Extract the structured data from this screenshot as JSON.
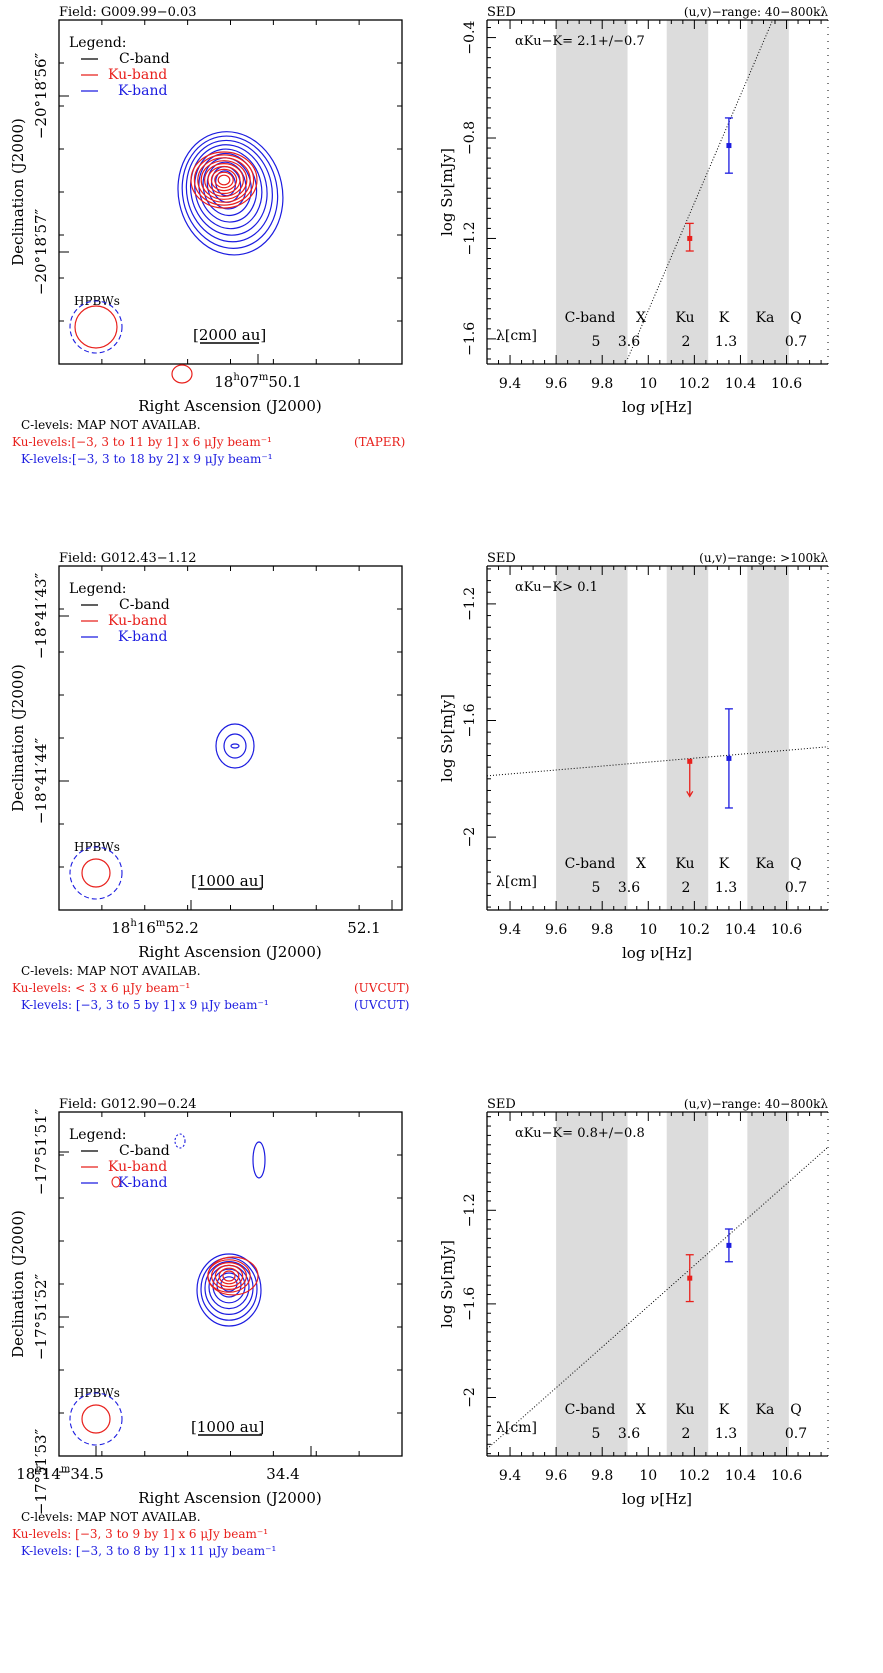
{
  "panels": [
    {
      "field_title": "Field: G009.99−0.03",
      "legend": {
        "title": "Legend:",
        "c": "C-band",
        "ku": "Ku-band",
        "k": "K-band"
      },
      "hpbws_label": "HPBWs",
      "scalebar_label": "[2000 au]",
      "ra_axis_label": "Right Ascension (J2000)",
      "dec_axis_label": "Declination (J2000)",
      "ra_ticks": [
        {
          "label": "18h07m50.1s",
          "base": "18",
          "h": "h",
          "mid": "07",
          "m": "m",
          "tail": "50.1"
        }
      ],
      "dec_ticks": [
        "−20°18′56″",
        "−20°18′57″"
      ],
      "levels": {
        "c": "C-levels:   MAP NOT AVAILAB.",
        "ku": "Ku-levels:[−3, 3 to 11 by 1] x  6 μJy beam⁻¹",
        "ku_note": "(TAPER)",
        "k": "K-levels:[−3, 3 to 18 by 2] x  9 μJy beam⁻¹",
        "k_note": ""
      },
      "sed": {
        "title": "SED",
        "uv_range": "(u,v)−range:  40−800kλ",
        "alpha": "αKu−K=  2.1+/−0.7",
        "bands": [
          "C-band",
          "X",
          "Ku",
          "K",
          "Ka",
          "Q"
        ],
        "wavelengths": [
          "5",
          "3.6",
          "2",
          "1.3",
          "0.7"
        ],
        "lambda_label": "λ[cm]",
        "xlabel": "log ν[Hz]",
        "ylabel": "log Sν[mJy]"
      }
    },
    {
      "field_title": "Field: G012.43−1.12",
      "legend": {
        "title": "Legend:",
        "c": "C-band",
        "ku": "Ku-band",
        "k": "K-band"
      },
      "hpbws_label": "HPBWs",
      "scalebar_label": "[1000 au]",
      "ra_axis_label": "Right Ascension (J2000)",
      "dec_axis_label": "Declination (J2000)",
      "ra_ticks": [
        {
          "label": "18h16m52.2s"
        },
        {
          "label": "52.1s"
        }
      ],
      "dec_ticks": [
        "−18°41′43″",
        "−18°41′44″"
      ],
      "levels": {
        "c": "C-levels:   MAP NOT AVAILAB.",
        "ku": "Ku-levels:    < 3 x 6 μJy beam⁻¹",
        "ku_note": "(UVCUT)",
        "k": "K-levels: [−3, 3 to 5 by 1]  x  9 μJy beam⁻¹",
        "k_note": "(UVCUT)"
      },
      "sed": {
        "title": "SED",
        "uv_range": "(u,v)−range:  >100kλ",
        "alpha": "αKu−K> 0.1",
        "bands": [
          "C-band",
          "X",
          "Ku",
          "K",
          "Ka",
          "Q"
        ],
        "wavelengths": [
          "5",
          "3.6",
          "2",
          "1.3",
          "0.7"
        ],
        "lambda_label": "λ[cm]",
        "xlabel": "log ν[Hz]",
        "ylabel": "log Sν[mJy]"
      }
    },
    {
      "field_title": "Field: G012.90−0.24",
      "legend": {
        "title": "Legend:",
        "c": "C-band",
        "ku": "Ku-band",
        "k": "K-band"
      },
      "hpbws_label": "HPBWs",
      "scalebar_label": "[1000 au]",
      "ra_axis_label": "Right Ascension (J2000)",
      "dec_axis_label": "Declination (J2000)",
      "ra_ticks": [
        {
          "label": "18h14m34.5s"
        },
        {
          "label": "34.4s"
        }
      ],
      "dec_ticks": [
        "−17°51′51″",
        "−17°51′52″",
        "−17°51′53″"
      ],
      "levels": {
        "c": "C-levels:   MAP NOT AVAILAB.",
        "ku": "Ku-levels: [−3, 3 to 9 by 1]  x  6 μJy beam⁻¹",
        "ku_note": "",
        "k": "K-levels: [−3, 3 to 8 by 1]  x 11 μJy beam⁻¹",
        "k_note": ""
      },
      "sed": {
        "title": "SED",
        "uv_range": "(u,v)−range:  40−800kλ",
        "alpha": "αKu−K=  0.8+/−0.8",
        "bands": [
          "C-band",
          "X",
          "Ku",
          "K",
          "Ka",
          "Q"
        ],
        "wavelengths": [
          "5",
          "3.6",
          "2",
          "1.3",
          "0.7"
        ],
        "lambda_label": "λ[cm]",
        "xlabel": "log ν[Hz]",
        "ylabel": "log Sν[mJy]"
      }
    }
  ],
  "colors": {
    "c_band": "#000000",
    "ku_band": "#e8201c",
    "k_band": "#1c1ce0",
    "band_shade": "#dcdcdc"
  },
  "chart_data": [
    {
      "type": "scatter",
      "title": "SED",
      "xlabel": "log ν[Hz]",
      "ylabel": "log Sν[mJy]",
      "xlim": [
        9.3,
        10.78
      ],
      "ylim": [
        -1.7,
        -0.33
      ],
      "xticks": [
        9.4,
        9.6,
        9.8,
        10,
        10.2,
        10.4,
        10.6
      ],
      "yticks": [
        -1.6,
        -1.2,
        -0.8,
        -0.4
      ],
      "shaded_bands": [
        [
          9.6,
          9.91
        ],
        [
          10.08,
          10.26
        ],
        [
          10.43,
          10.61
        ]
      ],
      "series": [
        {
          "name": "Ku-band",
          "x": [
            10.18
          ],
          "y": [
            -1.2
          ],
          "yerr_low": [
            0.05
          ],
          "yerr_high": [
            0.06
          ],
          "upper_limit": false
        },
        {
          "name": "K-band",
          "x": [
            10.35
          ],
          "y": [
            -0.83
          ],
          "yerr_low": [
            0.11
          ],
          "yerr_high": [
            0.11
          ],
          "upper_limit": false
        }
      ],
      "fit_line": {
        "points": [
          [
            9.91,
            -1.68
          ],
          [
            10.54,
            -0.33
          ]
        ]
      }
    },
    {
      "type": "scatter",
      "title": "SED",
      "xlabel": "log ν[Hz]",
      "ylabel": "log Sν[mJy]",
      "xlim": [
        9.3,
        10.78
      ],
      "ylim": [
        -2.25,
        -1.07
      ],
      "xticks": [
        9.4,
        9.6,
        9.8,
        10,
        10.2,
        10.4,
        10.6
      ],
      "yticks": [
        -2,
        -1.6,
        -1.2
      ],
      "shaded_bands": [
        [
          9.6,
          9.91
        ],
        [
          10.08,
          10.26
        ],
        [
          10.43,
          10.61
        ]
      ],
      "series": [
        {
          "name": "Ku-band",
          "x": [
            10.18
          ],
          "y": [
            -1.74
          ],
          "yerr_low": [
            0.12
          ],
          "yerr_high": [
            0
          ],
          "upper_limit": true
        },
        {
          "name": "K-band",
          "x": [
            10.35
          ],
          "y": [
            -1.73
          ],
          "yerr_low": [
            0.17
          ],
          "yerr_high": [
            0.17
          ],
          "upper_limit": false
        }
      ],
      "fit_line": {
        "points": [
          [
            9.3,
            -1.79
          ],
          [
            10.78,
            -1.69
          ]
        ]
      }
    },
    {
      "type": "scatter",
      "title": "SED",
      "xlabel": "log ν[Hz]",
      "ylabel": "log Sν[mJy]",
      "xlim": [
        9.3,
        10.78
      ],
      "ylim": [
        -2.25,
        -0.78
      ],
      "xticks": [
        9.4,
        9.6,
        9.8,
        10,
        10.2,
        10.4,
        10.6
      ],
      "yticks": [
        -2,
        -1.6,
        -1.2
      ],
      "shaded_bands": [
        [
          9.6,
          9.91
        ],
        [
          10.08,
          10.26
        ],
        [
          10.43,
          10.61
        ]
      ],
      "series": [
        {
          "name": "Ku-band",
          "x": [
            10.18
          ],
          "y": [
            -1.49
          ],
          "yerr_low": [
            0.1
          ],
          "yerr_high": [
            0.1
          ],
          "upper_limit": false
        },
        {
          "name": "K-band",
          "x": [
            10.35
          ],
          "y": [
            -1.35
          ],
          "yerr_low": [
            0.07
          ],
          "yerr_high": [
            0.07
          ],
          "upper_limit": false
        }
      ],
      "fit_line": {
        "points": [
          [
            9.3,
            -2.22
          ],
          [
            10.78,
            -0.93
          ]
        ]
      }
    }
  ]
}
